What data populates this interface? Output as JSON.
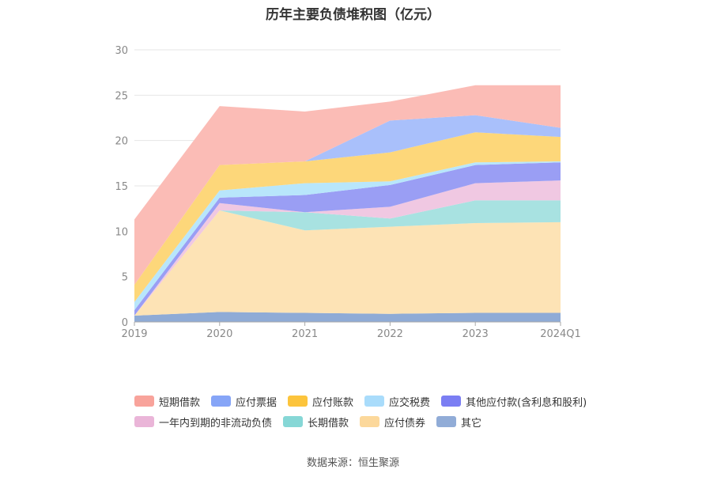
{
  "source_note": "数据来源：恒生聚源",
  "chart_data": {
    "type": "area",
    "stacked": true,
    "title": "历年主要负债堆积图（亿元）",
    "categories": [
      "2019",
      "2020",
      "2021",
      "2022",
      "2023",
      "2024Q1"
    ],
    "ylim": [
      0,
      30
    ],
    "yticks": [
      0,
      5,
      10,
      15,
      20,
      25,
      30
    ],
    "grid": true,
    "legend_position": "bottom",
    "series": [
      {
        "name": "其它",
        "color": "#8fabd6",
        "values": [
          0.7,
          1.1,
          1.0,
          0.9,
          1.0,
          1.0
        ]
      },
      {
        "name": "应付债券",
        "color": "#fde3b5",
        "values": [
          0.0,
          11.2,
          9.1,
          9.6,
          9.9,
          10.0
        ]
      },
      {
        "name": "长期借款",
        "color": "#a8e2e1",
        "values": [
          0.0,
          0.0,
          2.0,
          0.9,
          2.5,
          2.4
        ]
      },
      {
        "name": "一年内到期的非流动负债",
        "color": "#f0c8e2",
        "values": [
          0.0,
          0.8,
          0.0,
          1.3,
          1.9,
          2.2
        ]
      },
      {
        "name": "其他应付款(含利息和股利)",
        "color": "#9a9ef4",
        "values": [
          0.6,
          0.6,
          1.9,
          2.4,
          2.0,
          2.0
        ]
      },
      {
        "name": "应交税费",
        "color": "#b8e6fb",
        "values": [
          0.9,
          0.8,
          1.3,
          0.4,
          0.3,
          0.1
        ]
      },
      {
        "name": "应付账款",
        "color": "#fdd77a",
        "values": [
          1.9,
          2.8,
          2.4,
          3.2,
          3.3,
          2.7
        ]
      },
      {
        "name": "应付票据",
        "color": "#a9c0fb",
        "values": [
          0.0,
          0.0,
          0.0,
          3.5,
          1.9,
          1.0
        ]
      },
      {
        "name": "短期借款",
        "color": "#fbbcb6",
        "values": [
          7.2,
          6.5,
          5.5,
          2.1,
          3.3,
          4.7
        ]
      }
    ],
    "legend_order": [
      [
        "短期借款",
        "应付票据",
        "应付账款",
        "应交税费",
        "其他应付款(含利息和股利)"
      ],
      [
        "一年内到期的非流动负债",
        "长期借款",
        "应付债券",
        "其它"
      ]
    ],
    "legend_colors": {
      "短期借款": "#f8a39b",
      "应付票据": "#86a5f7",
      "应付账款": "#fcc43c",
      "应交税费": "#a9dcfb",
      "其他应付款(含利息和股利)": "#7b7ef3",
      "一年内到期的非流动负债": "#eab5d8",
      "长期借款": "#86d7d6",
      "应付债券": "#fcd89b",
      "其它": "#91acd7"
    }
  }
}
